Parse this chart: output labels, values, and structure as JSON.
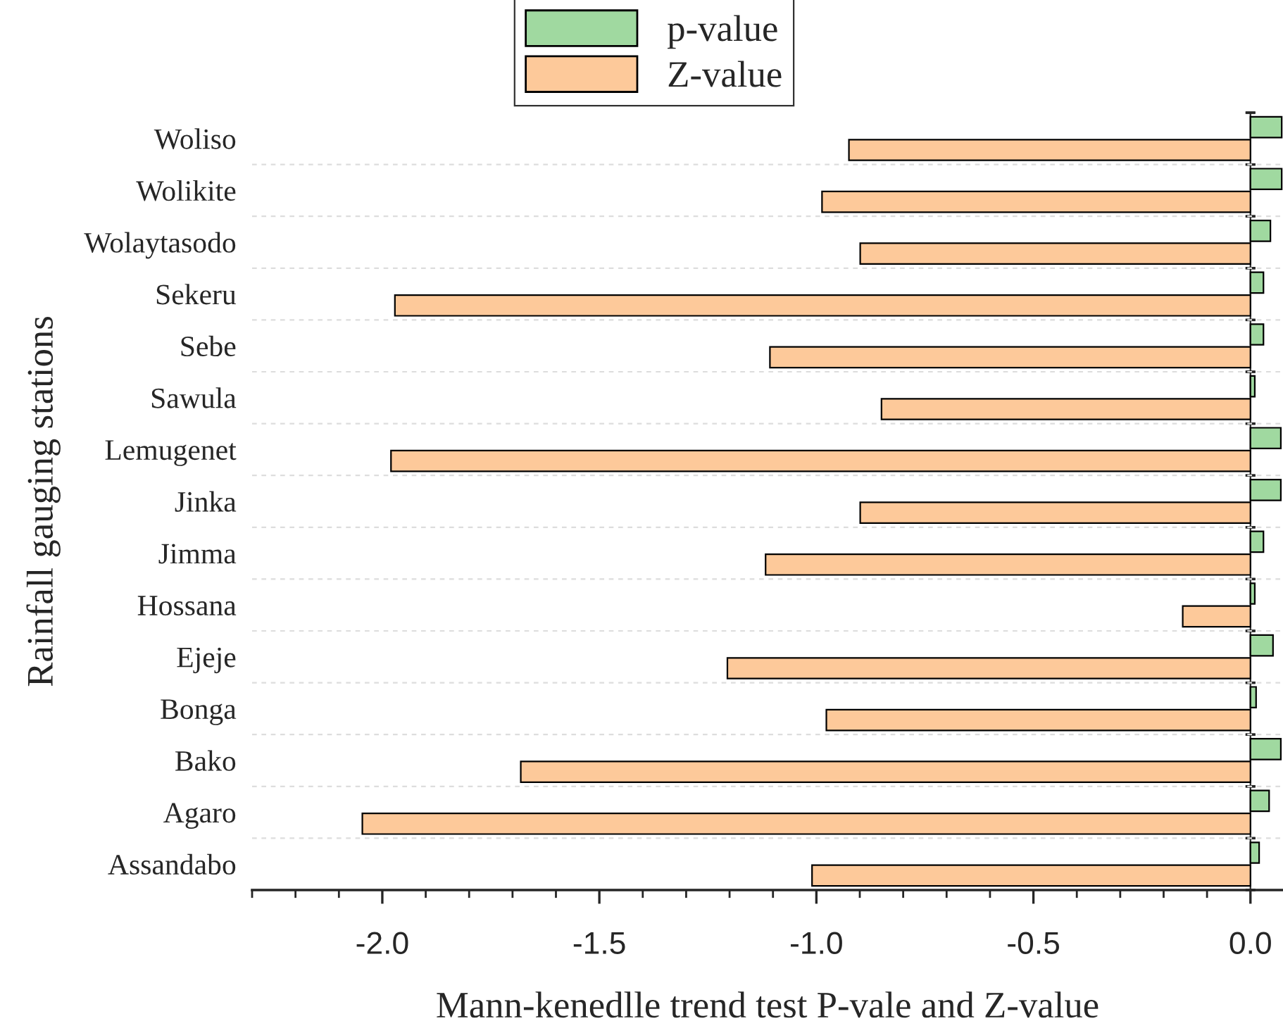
{
  "chart_data": {
    "type": "bar",
    "orientation": "horizontal",
    "categories": [
      "Woliso",
      "Wolikite",
      "Wolaytasodo",
      "Sekeru",
      "Sebe",
      "Sawula",
      "Lemugenet",
      "Jinka",
      "Jimma",
      "Hossana",
      "Ejeje",
      "Bonga",
      "Bako",
      "Agaro",
      "Assandabo"
    ],
    "series": [
      {
        "name": "p-value",
        "color": "#a0d9a0",
        "values": [
          0.072,
          0.072,
          0.046,
          0.03,
          0.03,
          0.01,
          0.07,
          0.07,
          0.03,
          0.01,
          0.052,
          0.013,
          0.07,
          0.043,
          0.02
        ]
      },
      {
        "name": "Z-value",
        "color": "#fdc99a",
        "values": [
          -0.925,
          -0.987,
          -0.899,
          -1.971,
          -1.107,
          -0.85,
          -1.98,
          -0.899,
          -1.117,
          -0.156,
          -1.205,
          -0.977,
          -1.681,
          -2.046,
          -1.01
        ]
      }
    ],
    "xlabel": "Mann-kenedlle trend test P-vale and Z-value",
    "ylabel": "Rainfall gauging stations",
    "xlim": [
      -2.3,
      0.075
    ],
    "xticks": [
      {
        "value": -2.3,
        "label": null
      },
      {
        "value": -2.2,
        "label": null
      },
      {
        "value": -2.1,
        "label": null
      },
      {
        "value": -2.0,
        "label": "-2.0"
      },
      {
        "value": -1.9,
        "label": null
      },
      {
        "value": -1.8,
        "label": null
      },
      {
        "value": -1.7,
        "label": null
      },
      {
        "value": -1.6,
        "label": null
      },
      {
        "value": -1.5,
        "label": "-1.5"
      },
      {
        "value": -1.4,
        "label": null
      },
      {
        "value": -1.3,
        "label": null
      },
      {
        "value": -1.2,
        "label": null
      },
      {
        "value": -1.1,
        "label": null
      },
      {
        "value": -1.0,
        "label": "-1.0"
      },
      {
        "value": -0.9,
        "label": null
      },
      {
        "value": -0.8,
        "label": null
      },
      {
        "value": -0.7,
        "label": null
      },
      {
        "value": -0.6,
        "label": null
      },
      {
        "value": -0.5,
        "label": "-0.5"
      },
      {
        "value": -0.4,
        "label": null
      },
      {
        "value": -0.3,
        "label": null
      },
      {
        "value": -0.2,
        "label": null
      },
      {
        "value": -0.1,
        "label": null
      },
      {
        "value": 0.0,
        "label": "0.0"
      }
    ],
    "grid": "y",
    "legend": "top"
  }
}
